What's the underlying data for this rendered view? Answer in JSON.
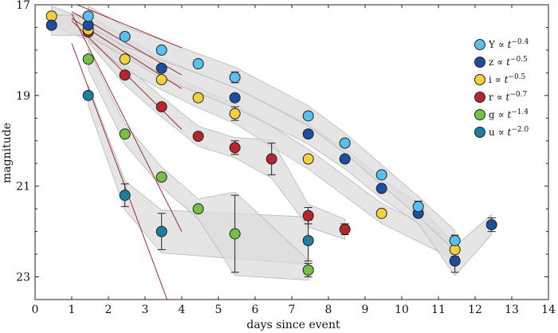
{
  "chart_data": {
    "type": "scatter",
    "title": "",
    "xlabel": "days since event",
    "ylabel": "magnitude",
    "xlim": [
      0,
      14
    ],
    "ylim": [
      17,
      23.5
    ],
    "y_inverted": true,
    "xticks": [
      "0",
      "1",
      "2",
      "3",
      "4",
      "5",
      "6",
      "7",
      "8",
      "9",
      "10",
      "11",
      "12",
      "13",
      "14"
    ],
    "yticks": [
      "17",
      "19",
      "21",
      "23"
    ],
    "legend_position": "right",
    "series": [
      {
        "name": "Y",
        "legend_label": "Y ∝ t",
        "exponent": "−0.4",
        "color": "#56c1ee",
        "x": [
          1.45,
          2.45,
          3.45,
          4.45,
          5.45,
          7.45,
          8.45,
          9.45,
          10.45,
          11.45
        ],
        "y": [
          17.25,
          17.7,
          18.0,
          18.3,
          18.6,
          19.45,
          20.05,
          20.75,
          21.45,
          22.2
        ],
        "err": [
          0,
          0,
          0,
          0,
          0.12,
          0,
          0,
          0,
          0.12,
          0.12
        ],
        "fit": {
          "x0": 1.0,
          "y0": 16.95,
          "x1": 4.0,
          "y1": 17.95
        }
      },
      {
        "name": "z",
        "legend_label": "z ∝ t",
        "exponent": "−0.5",
        "color": "#1b4e9e",
        "x": [
          0.45,
          1.45,
          3.45,
          5.45,
          7.45,
          8.45,
          9.45,
          10.45,
          11.45,
          12.45
        ],
        "y": [
          17.45,
          17.45,
          18.4,
          19.05,
          19.85,
          20.4,
          21.05,
          21.6,
          22.65,
          21.85
        ],
        "err": [
          0,
          0,
          0,
          0,
          0,
          0,
          0,
          0,
          0.25,
          0.15
        ],
        "fit": {
          "x0": 1.0,
          "y0": 17.15,
          "x1": 4.0,
          "y1": 18.55
        }
      },
      {
        "name": "i",
        "legend_label": "i ∝ t",
        "exponent": "−0.5",
        "color": "#f5cf3c",
        "x": [
          0.45,
          1.45,
          2.45,
          3.45,
          4.45,
          5.45,
          7.45,
          9.45,
          11.45
        ],
        "y": [
          17.25,
          17.55,
          18.2,
          18.65,
          19.05,
          19.4,
          20.4,
          21.6,
          22.4
        ],
        "err": [
          0,
          0,
          0,
          0,
          0,
          0.15,
          0,
          0,
          0.15
        ],
        "fit": {
          "x0": 1.0,
          "y0": 17.3,
          "x1": 4.0,
          "y1": 18.85
        }
      },
      {
        "name": "r",
        "legend_label": "r ∝ t",
        "exponent": "−0.7",
        "color": "#b8252f",
        "x": [
          1.45,
          2.45,
          3.45,
          4.45,
          5.45,
          6.45,
          7.45,
          8.45
        ],
        "y": [
          17.6,
          18.55,
          19.25,
          19.9,
          20.15,
          20.4,
          21.65,
          21.95
        ],
        "err": [
          0,
          0,
          0,
          0,
          0.15,
          0.35,
          0.18,
          0.12
        ],
        "fit": {
          "x0": 1.0,
          "y0": 17.35,
          "x1": 4.0,
          "y1": 19.75
        }
      },
      {
        "name": "g",
        "legend_label": "g ∝ t",
        "exponent": "−1.4",
        "color": "#76c043",
        "x": [
          1.45,
          2.45,
          3.45,
          4.45,
          5.45,
          7.45
        ],
        "y": [
          18.2,
          19.85,
          20.8,
          21.5,
          22.05,
          22.85
        ],
        "err": [
          0,
          0,
          0,
          0,
          0.85,
          0.15
        ],
        "fit": {
          "x0": 1.0,
          "y0": 17.2,
          "x1": 4.0,
          "y1": 22.0
        }
      },
      {
        "name": "u",
        "legend_label": "u ∝ t",
        "exponent": "−2.0",
        "color": "#1e7ea1",
        "x": [
          1.45,
          2.45,
          3.45,
          7.45
        ],
        "y": [
          19.0,
          21.2,
          22.0,
          22.2
        ],
        "err": [
          0,
          0.25,
          0.4,
          0.45
        ],
        "fit": {
          "x0": 1.0,
          "y0": 17.85,
          "x1": 3.6,
          "y1": 23.5
        }
      }
    ]
  }
}
